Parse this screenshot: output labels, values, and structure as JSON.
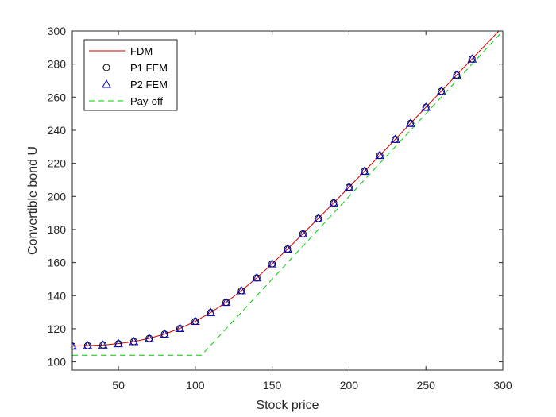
{
  "chart_data": {
    "type": "line",
    "title": "",
    "xlabel": "Stock price",
    "ylabel": "Convertible bond U",
    "xlim": [
      20,
      300
    ],
    "ylim": [
      95,
      300
    ],
    "xticks": [
      50,
      100,
      150,
      200,
      250,
      300
    ],
    "yticks": [
      100,
      120,
      140,
      160,
      180,
      200,
      220,
      240,
      260,
      280,
      300
    ],
    "grid": false,
    "legend_position": "top-left",
    "series": [
      {
        "name": "FDM",
        "style": "solid-line",
        "color": "#cc0000",
        "x": [
          20,
          30,
          40,
          50,
          60,
          70,
          80,
          90,
          100,
          110,
          120,
          130,
          140,
          150,
          160,
          170,
          180,
          190,
          200,
          210,
          220,
          230,
          240,
          250,
          260,
          270,
          280,
          290,
          300
        ],
        "y": [
          109.5,
          109.8,
          110.2,
          111,
          112.3,
          114.2,
          116.8,
          120.2,
          124.5,
          129.8,
          136,
          143,
          150.8,
          159.3,
          168.2,
          177.4,
          186.7,
          196.1,
          205.6,
          215.2,
          224.8,
          234.5,
          244.2,
          253.9,
          263.6,
          273.4,
          283.1,
          292.8,
          302.5
        ]
      },
      {
        "name": "P1 FEM",
        "style": "circle-marker",
        "color": "#000000",
        "x": [
          20,
          30,
          40,
          50,
          60,
          70,
          80,
          90,
          100,
          110,
          120,
          130,
          140,
          150,
          160,
          170,
          180,
          190,
          200,
          210,
          220,
          230,
          240,
          250,
          260,
          270,
          280
        ],
        "y": [
          109.5,
          109.8,
          110.2,
          111,
          112.3,
          114.2,
          116.8,
          120.2,
          124.5,
          129.8,
          136,
          143,
          150.8,
          159.3,
          168.2,
          177.4,
          186.7,
          196.1,
          205.6,
          215.2,
          224.8,
          234.5,
          244.2,
          253.9,
          263.6,
          273.4,
          283.1
        ]
      },
      {
        "name": "P2 FEM",
        "style": "triangle-marker",
        "color": "#0000cc",
        "x": [
          20,
          30,
          40,
          50,
          60,
          70,
          80,
          90,
          100,
          110,
          120,
          130,
          140,
          150,
          160,
          170,
          180,
          190,
          200,
          210,
          220,
          230,
          240,
          250,
          260,
          270,
          280
        ],
        "y": [
          109.5,
          109.8,
          110.2,
          111,
          112.3,
          114.2,
          116.8,
          120.2,
          124.5,
          129.8,
          136,
          143,
          150.8,
          159.3,
          168.2,
          177.4,
          186.7,
          196.1,
          205.6,
          215.2,
          224.8,
          234.5,
          244.2,
          253.9,
          263.6,
          273.4,
          283.1
        ]
      },
      {
        "name": "Pay-off",
        "style": "dashed-line",
        "color": "#00cc00",
        "x": [
          20,
          104,
          300
        ],
        "y": [
          104,
          104,
          300
        ]
      }
    ]
  }
}
